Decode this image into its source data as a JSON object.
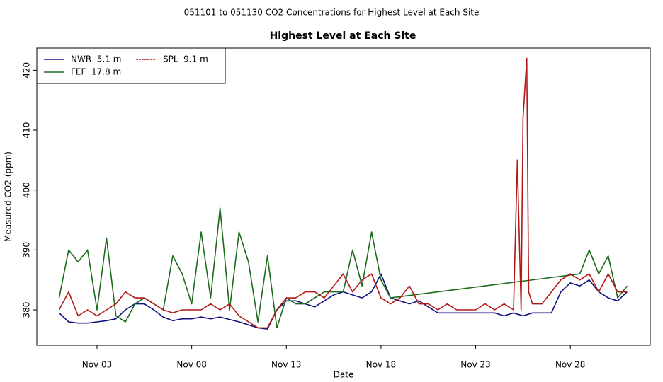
{
  "chart_data": {
    "type": "line",
    "suptitle": "051101  to  051130 CO2 Concentrations for Highest Level at Each Site",
    "title": "Highest Level at Each Site",
    "x_label": "Date",
    "y_label": "Measured CO2 (ppm)",
    "xlim": [
      -0.18,
      32.22
    ],
    "ylim": [
      374.1,
      423.7
    ],
    "xticks": [
      {
        "value": 3,
        "label": "Nov 03"
      },
      {
        "value": 8,
        "label": "Nov 08"
      },
      {
        "value": 13,
        "label": "Nov 13"
      },
      {
        "value": 18,
        "label": "Nov 18"
      },
      {
        "value": 23,
        "label": "Nov 23"
      },
      {
        "value": 28,
        "label": "Nov 28"
      }
    ],
    "yticks": [
      380,
      390,
      400,
      410,
      420
    ],
    "legend": "top-left",
    "series": [
      {
        "name": "NWR  5.1 m",
        "color": "#101080",
        "x": [
          1,
          1.5,
          2,
          2.5,
          3,
          3.5,
          4,
          4.5,
          5,
          5.5,
          6,
          6.5,
          7,
          7.5,
          8,
          8.5,
          9,
          9.5,
          10,
          10.5,
          11,
          11.5,
          12,
          12.5,
          13,
          13.5,
          14,
          14.5,
          15,
          15.5,
          16,
          16.5,
          17,
          17.5,
          18,
          18.5,
          19,
          19.5,
          20,
          20.5,
          21,
          24,
          24.5,
          25,
          25.5,
          26,
          26.5,
          27,
          27.5,
          28,
          28.5,
          29,
          29.5,
          30,
          30.5,
          31
        ],
        "values": [
          379.5,
          378,
          377.8,
          377.8,
          378,
          378.2,
          378.5,
          380,
          381,
          381,
          380,
          378.8,
          378.2,
          378.5,
          378.5,
          378.8,
          378.5,
          378.8,
          378.4,
          378,
          377.5,
          377,
          376.8,
          380,
          381.5,
          381.5,
          381,
          380.5,
          381.5,
          382.5,
          383,
          382.5,
          382,
          383,
          386,
          382,
          381.5,
          381,
          381.5,
          380.5,
          379.5,
          379.5,
          379,
          379.5,
          379,
          379.5,
          379.5,
          379.5,
          383,
          384.5,
          384,
          385,
          383,
          382,
          381.5,
          383
        ]
      },
      {
        "name": "FEF  17.8 m",
        "color": "#1a6b1a",
        "x": [
          1,
          1.5,
          2,
          2.5,
          3,
          3.5,
          4,
          4.5,
          5,
          5.5,
          6,
          6.5,
          7,
          7.5,
          8,
          8.5,
          9,
          9.5,
          10,
          10.5,
          11,
          11.5,
          12,
          12.5,
          13,
          13.5,
          14,
          14.5,
          15,
          15.5,
          16,
          16.5,
          17,
          17.5,
          18,
          18.5,
          28.5,
          29,
          29.5,
          30,
          30.5,
          31
        ],
        "values": [
          382,
          390,
          388,
          390,
          380,
          392,
          379,
          378,
          381,
          382,
          381,
          380,
          389,
          386,
          381,
          393,
          382,
          397,
          380,
          393,
          388,
          378,
          389,
          377,
          382,
          381,
          381,
          382,
          383,
          383,
          383,
          390,
          384,
          393,
          385,
          382,
          386,
          390,
          386,
          389,
          382,
          384
        ]
      },
      {
        "name": "SPL  9.1 m",
        "color": "#b01818",
        "x": [
          1,
          1.5,
          2,
          2.5,
          3,
          3.5,
          4,
          4.5,
          5,
          5.5,
          6,
          6.5,
          7,
          7.5,
          8,
          8.5,
          9,
          9.5,
          10,
          10.5,
          11,
          11.5,
          12,
          12.5,
          13,
          13.5,
          14,
          14.5,
          15,
          15.5,
          16,
          16.5,
          17,
          17.5,
          18,
          18.5,
          19,
          19.5,
          20,
          20.5,
          21,
          21.5,
          22,
          22.5,
          23,
          23.5,
          24,
          24.5,
          25,
          25.2,
          25.4,
          25.5,
          25.7,
          25.8,
          26,
          26.5,
          27,
          27.5,
          28,
          28.5,
          29,
          29.5,
          30,
          30.5,
          31
        ],
        "values": [
          380,
          383,
          379,
          380,
          379,
          380,
          381,
          383,
          382,
          382,
          381,
          380,
          379.5,
          380,
          380,
          380,
          381,
          380,
          381,
          379,
          378,
          377,
          377,
          380,
          382,
          382,
          383,
          383,
          382,
          384,
          386,
          383,
          385,
          386,
          382,
          381,
          382,
          384,
          381,
          381,
          380,
          381,
          380,
          380,
          380,
          381,
          380,
          381,
          380,
          405,
          380,
          412,
          422,
          383,
          381,
          381,
          383,
          385,
          386,
          385,
          386,
          383,
          386,
          383,
          383
        ]
      }
    ]
  }
}
